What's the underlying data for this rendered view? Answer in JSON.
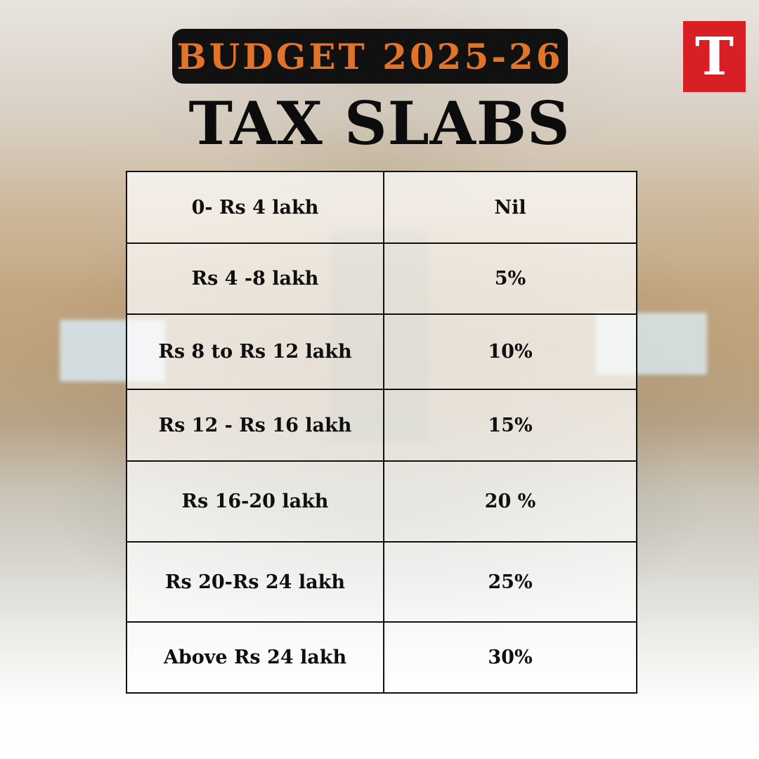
{
  "header": {
    "budget_label": "BUDGET 2025-26",
    "title": "TAX SLABS"
  },
  "logo": {
    "letter": "T",
    "color": "#d81f26"
  },
  "colors": {
    "accent": "#e2742a",
    "pill_background": "#111111"
  },
  "tax_slabs": [
    {
      "range": "0- Rs 4 lakh",
      "rate": "Nil"
    },
    {
      "range": "Rs 4 -8 lakh",
      "rate": "5%"
    },
    {
      "range": "Rs 8 to Rs 12 lakh",
      "rate": "10%"
    },
    {
      "range": "Rs 12 - Rs 16 lakh",
      "rate": "15%"
    },
    {
      "range": "Rs 16-20 lakh",
      "rate": "20 %"
    },
    {
      "range": "Rs 20-Rs 24 lakh",
      "rate": "25%"
    },
    {
      "range": "Above Rs 24 lakh",
      "rate": "30%"
    }
  ]
}
